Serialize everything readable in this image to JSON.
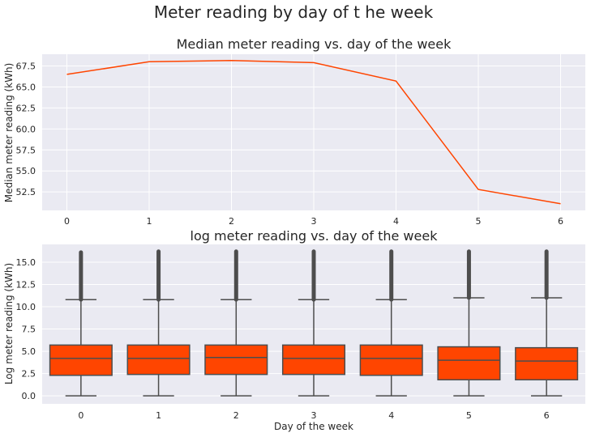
{
  "figure": {
    "suptitle": "Meter reading by day of t he week",
    "colors": {
      "plot_bg": "#EAEAF2",
      "grid": "#FFFFFF",
      "accent": "#FF4500",
      "box_edge": "#4D4D4D",
      "text": "#262626"
    }
  },
  "chart_data": [
    {
      "type": "line",
      "title": "Median meter reading vs. day of the week",
      "xlabel": "",
      "ylabel": "Median meter reading (kWh)",
      "x": [
        0,
        1,
        2,
        3,
        4,
        5,
        6
      ],
      "y": [
        66.5,
        68.0,
        68.15,
        67.9,
        65.7,
        52.8,
        51.1
      ],
      "xlim": [
        -0.3,
        6.3
      ],
      "ylim": [
        50.3,
        68.9
      ],
      "yticks": [
        52.5,
        55.0,
        57.5,
        60.0,
        62.5,
        65.0,
        67.5
      ],
      "xticks": [
        0,
        1,
        2,
        3,
        4,
        5,
        6
      ],
      "grid": true
    },
    {
      "type": "box",
      "title": "log meter reading vs. day of the week",
      "xlabel": "Day of the week",
      "ylabel": "Log meter reading (kWh)",
      "categories": [
        "0",
        "1",
        "2",
        "3",
        "4",
        "5",
        "6"
      ],
      "boxes": [
        {
          "min": 0,
          "q1": 2.3,
          "median": 4.2,
          "q3": 5.7,
          "whisker_high": 10.8,
          "outlier_max": 16.1
        },
        {
          "min": 0,
          "q1": 2.4,
          "median": 4.2,
          "q3": 5.7,
          "whisker_high": 10.8,
          "outlier_max": 16.2
        },
        {
          "min": 0,
          "q1": 2.4,
          "median": 4.3,
          "q3": 5.7,
          "whisker_high": 10.8,
          "outlier_max": 16.2
        },
        {
          "min": 0,
          "q1": 2.4,
          "median": 4.2,
          "q3": 5.7,
          "whisker_high": 10.8,
          "outlier_max": 16.2
        },
        {
          "min": 0,
          "q1": 2.3,
          "median": 4.2,
          "q3": 5.7,
          "whisker_high": 10.8,
          "outlier_max": 16.2
        },
        {
          "min": 0,
          "q1": 1.8,
          "median": 4.0,
          "q3": 5.5,
          "whisker_high": 11.0,
          "outlier_max": 16.2
        },
        {
          "min": 0,
          "q1": 1.8,
          "median": 3.9,
          "q3": 5.4,
          "whisker_high": 11.0,
          "outlier_max": 16.2
        }
      ],
      "ylim": [
        -0.9,
        17.0
      ],
      "yticks": [
        0.0,
        2.5,
        5.0,
        7.5,
        10.0,
        12.5,
        15.0
      ],
      "grid": true
    }
  ]
}
